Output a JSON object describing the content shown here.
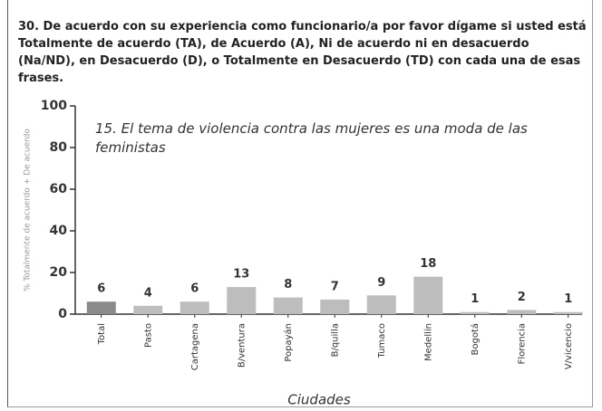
{
  "chart_data": {
    "type": "bar",
    "question": "30. De acuerdo con su experiencia como funcionario/a por favor dígame si usted está Totalmente de acuerdo (TA), de Acuerdo (A), Ni de acuerdo ni en desacuerdo (Na/ND), en Desacuerdo (D), o Totalmente en Desacuerdo (TD) con cada una de esas frases.",
    "title": "15. El tema de violencia contra las mujeres es una moda de las feministas",
    "y_label": "% Totalmente de acuerdo + De acuerdo",
    "x_label": "Ciudades",
    "categories": [
      "Total",
      "Pasto",
      "Cartagena",
      "B/ventura",
      "Popayán",
      "B/quilla",
      "Tumaco",
      "Medellín",
      "Bogotá",
      "Florencia",
      "V/vicencio"
    ],
    "values": [
      6,
      4,
      6,
      13,
      8,
      7,
      9,
      18,
      1,
      2,
      1
    ],
    "colors": [
      "#8a8a8a",
      "#bdbdbd",
      "#bdbdbd",
      "#bdbdbd",
      "#bdbdbd",
      "#bdbdbd",
      "#bdbdbd",
      "#bdbdbd",
      "#bdbdbd",
      "#bdbdbd",
      "#bdbdbd"
    ],
    "ylim": [
      0,
      100
    ],
    "yticks": [
      0,
      20,
      40,
      60,
      80,
      100
    ]
  }
}
